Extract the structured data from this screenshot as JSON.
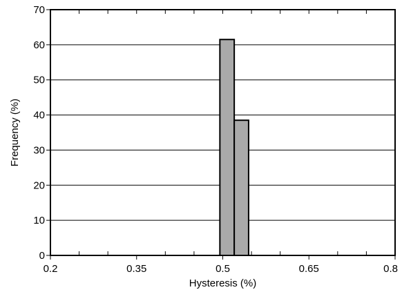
{
  "chart_data": {
    "type": "bar",
    "title": "",
    "xlabel": "Hysteresis (%)",
    "ylabel": "Frequency (%)",
    "xlim": [
      0.2,
      0.8
    ],
    "ylim": [
      0,
      70
    ],
    "x_ticks": [
      0.2,
      0.35,
      0.5,
      0.65,
      0.8
    ],
    "x_tick_labels": [
      "0.2",
      "0.35",
      "0.5",
      "0.65",
      "0.8"
    ],
    "x_minor_ticks": [
      0.25,
      0.3,
      0.4,
      0.45,
      0.55,
      0.6,
      0.7,
      0.75
    ],
    "y_ticks": [
      0,
      10,
      20,
      30,
      40,
      50,
      60,
      70
    ],
    "y_tick_labels": [
      "0",
      "10",
      "20",
      "30",
      "40",
      "50",
      "60",
      "70"
    ],
    "grid": "horizontal",
    "bars": [
      {
        "x_start": 0.495,
        "x_end": 0.52,
        "value": 61.5
      },
      {
        "x_start": 0.52,
        "x_end": 0.545,
        "value": 38.5
      }
    ],
    "colors": {
      "bar_fill": "#aaaaaa",
      "bar_stroke": "#000000",
      "grid": "#000000"
    }
  }
}
